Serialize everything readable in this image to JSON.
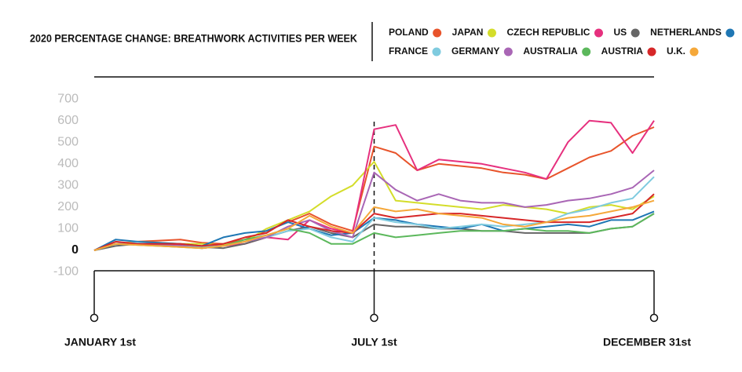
{
  "chart_data": {
    "type": "line",
    "title": "2020 PERCENTAGE CHANGE: BREATHWORK ACTIVITIES PER WEEK",
    "categories": [
      "JANUARY 1st",
      null,
      null,
      null,
      null,
      null,
      null,
      null,
      null,
      null,
      null,
      null,
      null,
      "JULY 1st",
      null,
      null,
      null,
      null,
      null,
      null,
      null,
      null,
      null,
      null,
      null,
      null,
      "DECEMBER 31st"
    ],
    "ylim": [
      -100,
      800
    ],
    "yticks": [
      -100,
      0,
      100,
      200,
      300,
      400,
      500,
      600,
      700
    ],
    "series": [
      {
        "name": "POLAND",
        "color": "#e8542b",
        "values": [
          0,
          30,
          40,
          45,
          50,
          35,
          30,
          50,
          90,
          130,
          170,
          120,
          90,
          480,
          450,
          370,
          400,
          390,
          380,
          360,
          350,
          330,
          380,
          430,
          460,
          530,
          570
        ]
      },
      {
        "name": "JAPAN",
        "color": "#d4dd2a",
        "values": [
          0,
          30,
          40,
          35,
          30,
          30,
          25,
          40,
          100,
          140,
          180,
          250,
          300,
          410,
          230,
          220,
          210,
          200,
          190,
          210,
          200,
          190,
          170,
          200,
          210,
          190,
          250
        ]
      },
      {
        "name": "CZECH REPUBLIC",
        "color": "#e6307e",
        "values": [
          0,
          30,
          35,
          30,
          25,
          20,
          20,
          30,
          60,
          50,
          140,
          100,
          80,
          560,
          580,
          370,
          420,
          410,
          400,
          380,
          360,
          330,
          500,
          600,
          590,
          450,
          600
        ]
      },
      {
        "name": "US",
        "color": "#666666",
        "values": [
          0,
          20,
          30,
          25,
          20,
          15,
          10,
          30,
          60,
          90,
          110,
          80,
          60,
          120,
          110,
          110,
          100,
          100,
          90,
          90,
          80,
          80,
          80,
          80,
          100,
          110,
          170
        ]
      },
      {
        "name": "NETHERLANDS",
        "color": "#1f77b4",
        "values": [
          0,
          50,
          40,
          35,
          30,
          20,
          60,
          80,
          90,
          130,
          100,
          70,
          80,
          150,
          140,
          120,
          110,
          100,
          120,
          90,
          100,
          110,
          120,
          110,
          140,
          140,
          180
        ]
      },
      {
        "name": "FRANCE",
        "color": "#7fcbdf",
        "values": [
          0,
          30,
          35,
          25,
          20,
          15,
          20,
          40,
          60,
          90,
          100,
          60,
          40,
          150,
          130,
          120,
          100,
          110,
          120,
          110,
          120,
          130,
          170,
          190,
          220,
          240,
          340
        ]
      },
      {
        "name": "GERMANY",
        "color": "#a966b5",
        "values": [
          0,
          30,
          30,
          25,
          20,
          10,
          20,
          40,
          60,
          110,
          140,
          90,
          60,
          360,
          280,
          230,
          260,
          230,
          220,
          220,
          200,
          210,
          230,
          240,
          260,
          290,
          370
        ]
      },
      {
        "name": "AUSTRALIA",
        "color": "#5cb85c",
        "values": [
          0,
          30,
          25,
          20,
          15,
          10,
          20,
          50,
          70,
          100,
          80,
          30,
          30,
          80,
          60,
          70,
          80,
          90,
          90,
          90,
          100,
          90,
          90,
          80,
          100,
          110,
          170
        ]
      },
      {
        "name": "AUSTRIA",
        "color": "#d62728",
        "values": [
          0,
          40,
          30,
          30,
          30,
          20,
          30,
          60,
          80,
          140,
          110,
          90,
          80,
          170,
          150,
          160,
          170,
          170,
          160,
          150,
          140,
          130,
          130,
          130,
          150,
          170,
          260
        ]
      },
      {
        "name": "U.K.",
        "color": "#f5a83a",
        "values": [
          0,
          30,
          25,
          20,
          15,
          10,
          20,
          40,
          70,
          100,
          160,
          110,
          80,
          200,
          180,
          190,
          170,
          160,
          150,
          120,
          110,
          130,
          150,
          160,
          180,
          200,
          230
        ]
      }
    ]
  }
}
